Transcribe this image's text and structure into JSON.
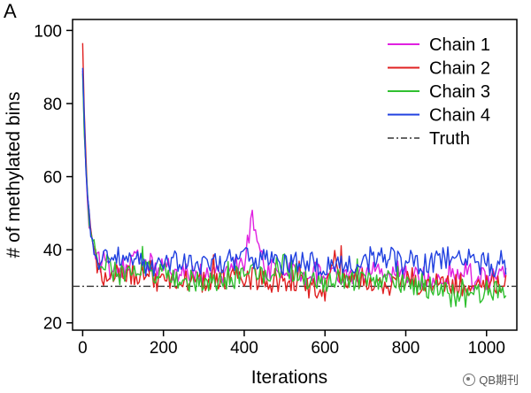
{
  "panel_label": "A",
  "watermark": "QB期刊",
  "chart_data": {
    "type": "line",
    "title": "",
    "xlabel": "Iterations",
    "ylabel": "# of methylated bins",
    "xlim": [
      -25,
      1075
    ],
    "ylim": [
      18,
      103
    ],
    "x_ticks": [
      0,
      200,
      400,
      600,
      800,
      1000
    ],
    "y_ticks": [
      20,
      40,
      60,
      80,
      100
    ],
    "grid": false,
    "legend_position": "top-right",
    "truth_value": 30,
    "series": [
      {
        "name": "Chain 1",
        "color": "#e020e0",
        "x": [
          0,
          5,
          10,
          15,
          20,
          25,
          30,
          40,
          50,
          60,
          80,
          100,
          130,
          160,
          200,
          250,
          300,
          350,
          400,
          420,
          450,
          500,
          550,
          600,
          650,
          700,
          750,
          800,
          850,
          900,
          950,
          1000,
          1050
        ],
        "values": [
          88,
          70,
          55,
          48,
          46,
          43,
          40,
          38,
          35,
          36,
          34,
          35,
          37,
          36,
          35,
          34,
          33,
          34,
          36,
          50,
          35,
          34,
          33,
          34,
          32,
          33,
          34,
          33,
          32,
          33,
          34,
          32,
          33
        ]
      },
      {
        "name": "Chain 2",
        "color": "#e02020",
        "x": [
          0,
          5,
          10,
          15,
          20,
          25,
          30,
          40,
          50,
          60,
          80,
          100,
          130,
          160,
          200,
          250,
          300,
          350,
          400,
          450,
          500,
          550,
          600,
          620,
          650,
          700,
          750,
          800,
          850,
          900,
          950,
          1000,
          1050
        ],
        "values": [
          96,
          75,
          58,
          50,
          46,
          42,
          38,
          36,
          33,
          32,
          33,
          34,
          33,
          32,
          31,
          32,
          31,
          32,
          33,
          31,
          32,
          30,
          29,
          38,
          31,
          32,
          30,
          31,
          30,
          31,
          30,
          31,
          30
        ]
      },
      {
        "name": "Chain 3",
        "color": "#30c030",
        "x": [
          0,
          5,
          10,
          15,
          20,
          25,
          30,
          40,
          50,
          60,
          80,
          100,
          130,
          160,
          200,
          250,
          300,
          350,
          400,
          450,
          500,
          550,
          600,
          650,
          700,
          750,
          800,
          850,
          900,
          950,
          1000,
          1050
        ],
        "values": [
          88,
          68,
          56,
          49,
          45,
          42,
          40,
          37,
          35,
          36,
          34,
          33,
          34,
          35,
          33,
          32,
          31,
          32,
          33,
          34,
          36,
          32,
          31,
          32,
          31,
          32,
          31,
          30,
          28,
          27,
          29,
          30
        ]
      },
      {
        "name": "Chain 4",
        "color": "#2040e0",
        "x": [
          0,
          5,
          10,
          15,
          20,
          25,
          30,
          40,
          50,
          60,
          80,
          100,
          130,
          160,
          200,
          250,
          300,
          350,
          400,
          450,
          500,
          550,
          600,
          650,
          700,
          750,
          800,
          850,
          900,
          930,
          960,
          1000,
          1050
        ],
        "values": [
          90,
          72,
          57,
          50,
          45,
          42,
          39,
          37,
          36,
          38,
          37,
          38,
          37,
          36,
          36,
          37,
          36,
          37,
          38,
          37,
          36,
          37,
          35,
          37,
          36,
          38,
          37,
          36,
          38,
          40,
          37,
          36,
          34
        ]
      },
      {
        "name": "Truth",
        "color": "#333333",
        "dash": "dash-dot",
        "x": [
          -25,
          1075
        ],
        "values": [
          30,
          30
        ]
      }
    ]
  }
}
